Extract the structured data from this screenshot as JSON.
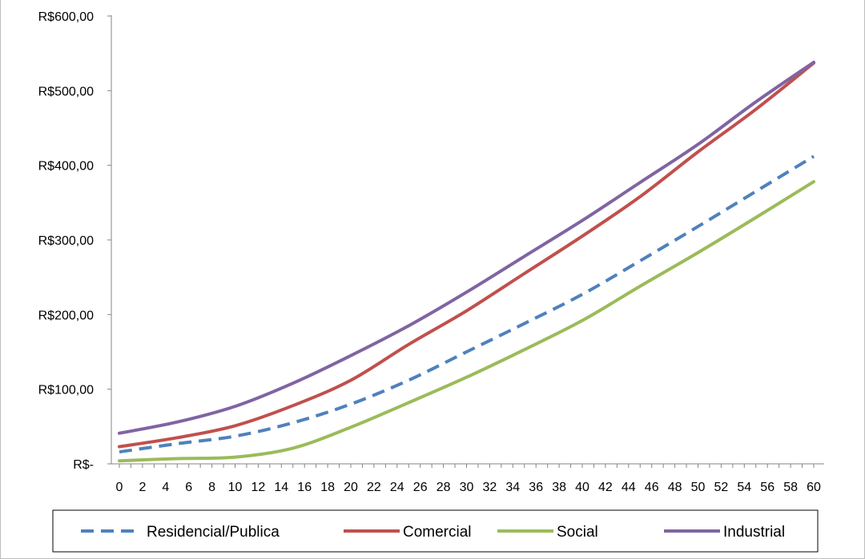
{
  "chart_data": {
    "type": "line",
    "title": "",
    "xlabel": "",
    "ylabel": "",
    "ylim": [
      0,
      600
    ],
    "y_ticks": [
      "R$-",
      "R$100,00",
      "R$200,00",
      "R$300,00",
      "R$400,00",
      "R$500,00",
      "R$600,00"
    ],
    "x_ticks": [
      0,
      2,
      4,
      6,
      8,
      10,
      12,
      14,
      16,
      18,
      20,
      22,
      24,
      26,
      28,
      30,
      32,
      34,
      36,
      38,
      40,
      42,
      44,
      46,
      48,
      50,
      52,
      54,
      56,
      58,
      60
    ],
    "grid": false,
    "legend_position": "bottom",
    "series": [
      {
        "name": "Residencial/Publica",
        "color": "#4f81bd",
        "style": "dashed",
        "x": [
          0,
          5,
          10,
          15,
          20,
          25,
          30,
          35,
          40,
          45,
          50,
          55,
          60
        ],
        "values": [
          16,
          27,
          37,
          55,
          80,
          112,
          150,
          188,
          227,
          272,
          318,
          365,
          412
        ]
      },
      {
        "name": "Comercial",
        "color": "#c0504d",
        "style": "solid",
        "x": [
          0,
          5,
          10,
          15,
          20,
          25,
          30,
          35,
          40,
          45,
          50,
          55,
          60
        ],
        "values": [
          23,
          35,
          51,
          78,
          112,
          160,
          205,
          255,
          305,
          358,
          418,
          475,
          537
        ]
      },
      {
        "name": "Social",
        "color": "#9bbb59",
        "style": "solid",
        "x": [
          0,
          5,
          10,
          15,
          20,
          25,
          30,
          35,
          40,
          45,
          50,
          55,
          60
        ],
        "values": [
          4,
          7,
          9,
          21,
          49,
          82,
          116,
          153,
          192,
          238,
          283,
          330,
          378
        ]
      },
      {
        "name": "Industrial",
        "color": "#8064a2",
        "style": "solid",
        "x": [
          0,
          5,
          10,
          15,
          20,
          25,
          30,
          35,
          40,
          45,
          50,
          55,
          60
        ],
        "values": [
          41,
          56,
          77,
          108,
          145,
          185,
          230,
          278,
          326,
          377,
          428,
          485,
          538
        ]
      }
    ]
  }
}
